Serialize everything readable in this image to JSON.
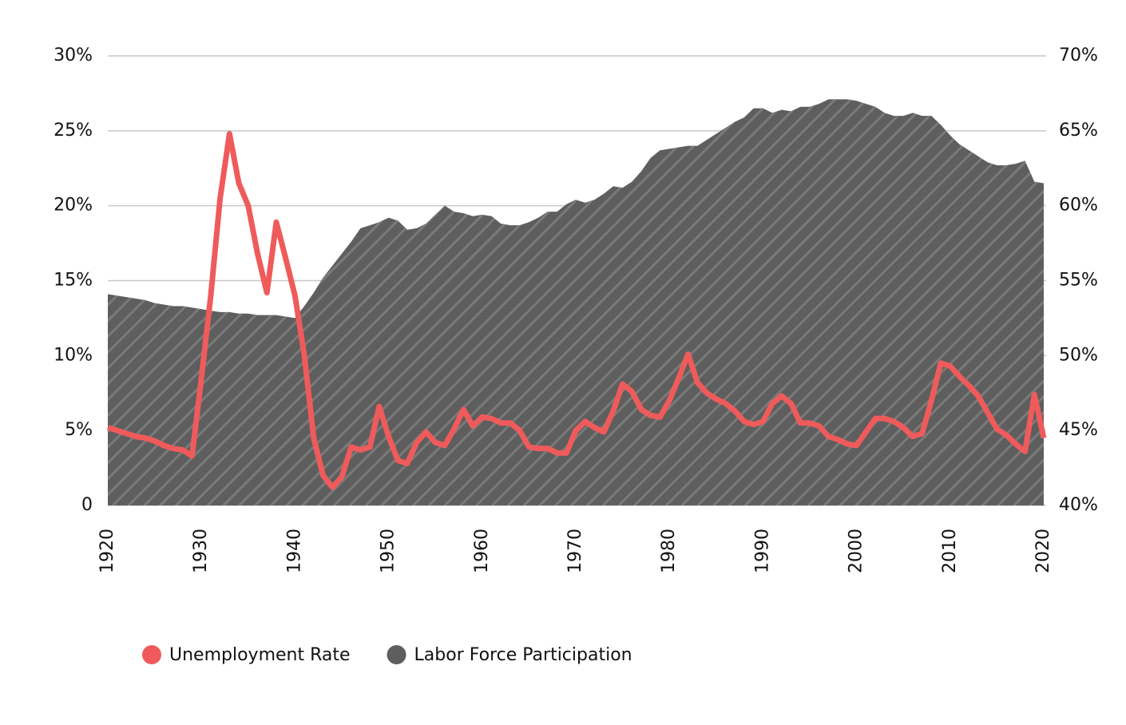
{
  "chart_data": {
    "type": "line-area",
    "x": [
      1920,
      1921,
      1922,
      1923,
      1924,
      1925,
      1926,
      1927,
      1928,
      1929,
      1930,
      1931,
      1932,
      1933,
      1934,
      1935,
      1936,
      1937,
      1938,
      1939,
      1940,
      1941,
      1942,
      1943,
      1944,
      1945,
      1946,
      1947,
      1948,
      1949,
      1950,
      1951,
      1952,
      1953,
      1954,
      1955,
      1956,
      1957,
      1958,
      1959,
      1960,
      1961,
      1962,
      1963,
      1964,
      1965,
      1966,
      1967,
      1968,
      1969,
      1970,
      1971,
      1972,
      1973,
      1974,
      1975,
      1976,
      1977,
      1978,
      1979,
      1980,
      1981,
      1982,
      1983,
      1984,
      1985,
      1986,
      1987,
      1988,
      1989,
      1990,
      1991,
      1992,
      1993,
      1994,
      1995,
      1996,
      1997,
      1998,
      1999,
      2000,
      2001,
      2002,
      2003,
      2004,
      2005,
      2006,
      2007,
      2008,
      2009,
      2010,
      2011,
      2012,
      2013,
      2014,
      2015,
      2016,
      2017,
      2018,
      2019,
      2020
    ],
    "series": [
      {
        "name": "Unemployment Rate",
        "color": "#ef5b5b",
        "axis": "y",
        "values": [
          5.2,
          5.0,
          4.8,
          4.6,
          4.5,
          4.3,
          4.0,
          3.8,
          3.7,
          3.3,
          8.5,
          14.0,
          20.5,
          24.8,
          21.5,
          20.0,
          16.8,
          14.2,
          18.9,
          16.5,
          14.0,
          10.0,
          4.5,
          2.0,
          1.2,
          1.9,
          3.9,
          3.7,
          3.9,
          6.6,
          4.6,
          3.0,
          2.8,
          4.2,
          4.9,
          4.2,
          4.0,
          5.1,
          6.4,
          5.3,
          5.9,
          5.8,
          5.5,
          5.5,
          5.0,
          3.9,
          3.8,
          3.8,
          3.5,
          3.5,
          5.0,
          5.6,
          5.2,
          4.9,
          6.3,
          8.1,
          7.6,
          6.4,
          6.0,
          5.9,
          7.0,
          8.5,
          10.1,
          8.2,
          7.5,
          7.1,
          6.8,
          6.3,
          5.6,
          5.4,
          5.6,
          6.8,
          7.3,
          6.8,
          5.5,
          5.5,
          5.3,
          4.6,
          4.4,
          4.1,
          4.0,
          4.9,
          5.8,
          5.8,
          5.6,
          5.2,
          4.6,
          4.8,
          7.0,
          9.5,
          9.3,
          8.6,
          8.0,
          7.3,
          6.2,
          5.1,
          4.7,
          4.1,
          3.6,
          7.4,
          4.5
        ]
      },
      {
        "name": "Labor Force Participation",
        "color": "#5e5e5e",
        "axis": "y2",
        "values": [
          54.1,
          54.0,
          53.9,
          53.8,
          53.7,
          53.5,
          53.4,
          53.3,
          53.3,
          53.2,
          53.1,
          53.0,
          52.9,
          52.9,
          52.8,
          52.8,
          52.7,
          52.7,
          52.7,
          52.6,
          52.5,
          53.3,
          54.2,
          55.2,
          56.0,
          56.8,
          57.6,
          58.5,
          58.7,
          58.9,
          59.2,
          59.0,
          58.4,
          58.5,
          58.8,
          59.4,
          60.0,
          59.6,
          59.5,
          59.3,
          59.4,
          59.3,
          58.8,
          58.7,
          58.7,
          58.9,
          59.2,
          59.6,
          59.6,
          60.1,
          60.4,
          60.2,
          60.4,
          60.8,
          61.3,
          61.2,
          61.6,
          62.3,
          63.2,
          63.7,
          63.8,
          63.9,
          64.0,
          64.0,
          64.4,
          64.8,
          65.2,
          65.6,
          65.9,
          66.5,
          66.5,
          66.2,
          66.4,
          66.3,
          66.6,
          66.6,
          66.8,
          67.1,
          67.1,
          67.1,
          67.0,
          66.8,
          66.6,
          66.2,
          66.0,
          66.0,
          66.2,
          66.0,
          66.0,
          65.4,
          64.7,
          64.1,
          63.7,
          63.3,
          62.9,
          62.7,
          62.7,
          62.8,
          63.0,
          61.6,
          61.5
        ]
      }
    ],
    "xlim": [
      1920,
      2020
    ],
    "xticks": [
      1920,
      1930,
      1940,
      1950,
      1960,
      1970,
      1980,
      1990,
      2000,
      2010,
      2020
    ],
    "ylim": [
      0,
      30
    ],
    "yticks": [
      0,
      {
        "value": 5,
        "label": "5%"
      },
      {
        "value": 10,
        "label": "10%"
      },
      {
        "value": 15,
        "label": "15%"
      },
      {
        "value": 20,
        "label": "20%"
      },
      {
        "value": 25,
        "label": "25%"
      },
      {
        "value": 30,
        "label": "30%"
      }
    ],
    "y2lim": [
      40,
      70
    ],
    "y2ticks": [
      {
        "value": 40,
        "label": "40%"
      },
      {
        "value": 45,
        "label": "45%"
      },
      {
        "value": 50,
        "label": "50%"
      },
      {
        "value": 55,
        "label": "55%"
      },
      {
        "value": 60,
        "label": "60%"
      },
      {
        "value": 65,
        "label": "65%"
      },
      {
        "value": 70,
        "label": "70%"
      }
    ],
    "grid": true,
    "legend": "bottom"
  }
}
